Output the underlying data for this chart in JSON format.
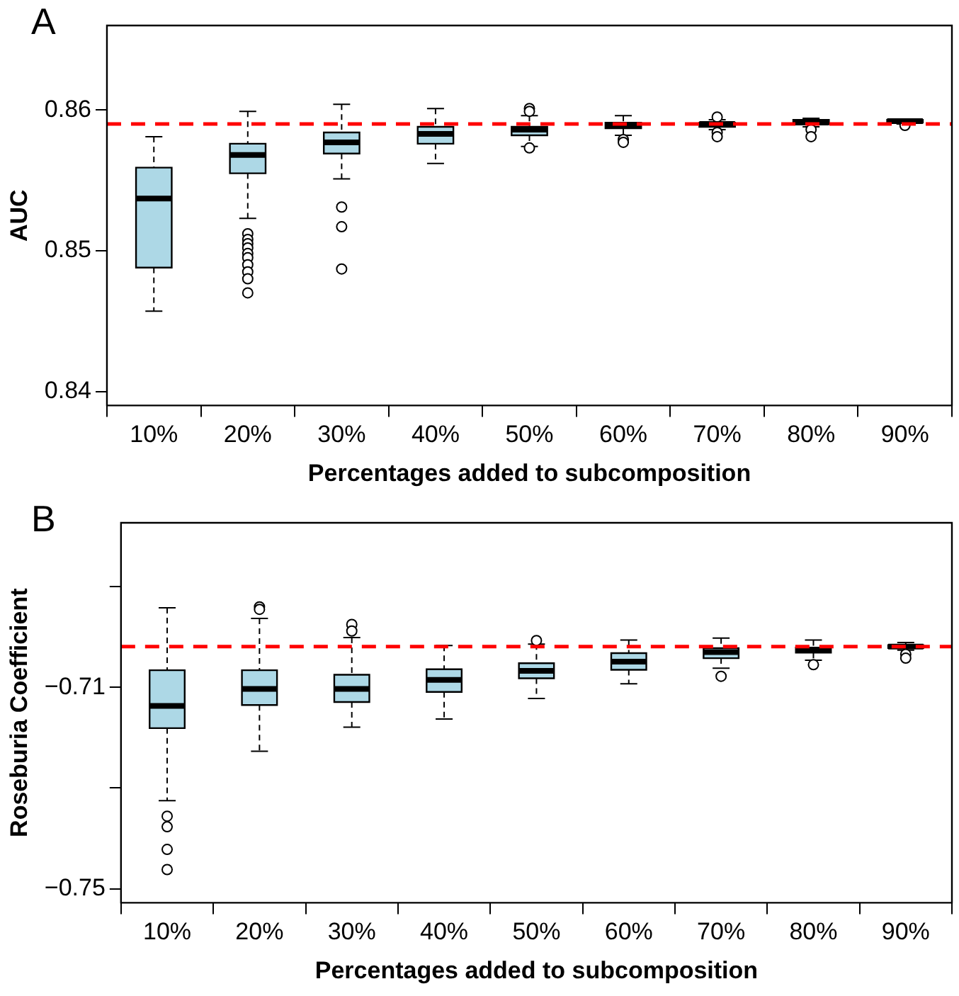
{
  "chart_data": [
    {
      "type": "box",
      "annotations": [
        "A"
      ],
      "xlabel": "Percentages added to subcomposition",
      "ylabel": "AUC",
      "categories": [
        "10%",
        "20%",
        "30%",
        "40%",
        "50%",
        "60%",
        "70%",
        "80%",
        "90%"
      ],
      "color": "#add8e6",
      "grid": false,
      "ylim": [
        0.839,
        0.866
      ],
      "yticks": [
        0.84,
        0.85,
        0.86
      ],
      "ref_lines": [
        {
          "axis": "y",
          "value": 0.859,
          "color": "#ff0000",
          "line_style": "dashed"
        }
      ],
      "boxes": [
        {
          "low": 0.8457,
          "q1": 0.8488,
          "median": 0.8537,
          "q3": 0.8559,
          "high": 0.8581
        },
        {
          "low": 0.8523,
          "q1": 0.8555,
          "median": 0.8568,
          "q3": 0.8576,
          "high": 0.8599,
          "outliers": [
            0.8512,
            0.8508,
            0.8505,
            0.8502,
            0.8498,
            0.8495,
            0.849,
            0.8485,
            0.848,
            0.847
          ]
        },
        {
          "low": 0.8551,
          "q1": 0.8569,
          "median": 0.8577,
          "q3": 0.8584,
          "high": 0.8604,
          "outliers": [
            0.8531,
            0.8517,
            0.8487
          ]
        },
        {
          "low": 0.8562,
          "q1": 0.8576,
          "median": 0.8583,
          "q3": 0.8588,
          "high": 0.8601
        },
        {
          "low": 0.8574,
          "q1": 0.8582,
          "median": 0.8586,
          "q3": 0.8588,
          "high": 0.8596,
          "outliers": [
            0.8601,
            0.8599,
            0.8573
          ]
        },
        {
          "low": 0.8582,
          "q1": 0.8587,
          "median": 0.8589,
          "q3": 0.8591,
          "high": 0.8596,
          "outliers": [
            0.8579,
            0.8577
          ]
        },
        {
          "low": 0.8586,
          "q1": 0.8588,
          "median": 0.859,
          "q3": 0.8591,
          "high": 0.8593,
          "outliers": [
            0.8595,
            0.8584,
            0.8581
          ]
        },
        {
          "low": 0.8588,
          "q1": 0.859,
          "median": 0.8591,
          "q3": 0.8593,
          "high": 0.8594,
          "outliers": [
            0.8586,
            0.8581
          ]
        },
        {
          "low": 0.859,
          "q1": 0.8591,
          "median": 0.8592,
          "q3": 0.8593,
          "high": 0.8593,
          "outliers": [
            0.8589
          ]
        }
      ]
    },
    {
      "type": "box",
      "annotations": [
        "B"
      ],
      "xlabel": "Percentages added to subcomposition",
      "ylabel": "Roseburia Coefficient",
      "categories": [
        "10%",
        "20%",
        "30%",
        "40%",
        "50%",
        "60%",
        "70%",
        "80%",
        "90%"
      ],
      "color": "#add8e6",
      "grid": false,
      "ylim": [
        -0.7528,
        -0.6773
      ],
      "yticks": [
        {
          "value": -0.69,
          "label": null
        },
        {
          "value": -0.71,
          "label": "−0.71"
        },
        {
          "value": -0.73,
          "label": null
        },
        {
          "value": -0.75,
          "label": "−0.75"
        }
      ],
      "ref_lines": [
        {
          "axis": "y",
          "value": -0.7019,
          "color": "#ff0000",
          "line_style": "dashed"
        }
      ],
      "boxes": [
        {
          "low": -0.7325,
          "q1": -0.7181,
          "median": -0.7137,
          "q3": -0.7066,
          "high": -0.6942,
          "outliers": [
            -0.7356,
            -0.7377,
            -0.7422,
            -0.7462
          ]
        },
        {
          "low": -0.7227,
          "q1": -0.7135,
          "median": -0.7103,
          "q3": -0.7066,
          "high": -0.6963,
          "outliers": [
            -0.694,
            -0.6945
          ]
        },
        {
          "low": -0.7179,
          "q1": -0.7129,
          "median": -0.7103,
          "q3": -0.7075,
          "high": -0.7001,
          "outliers": [
            -0.6975,
            -0.6988
          ]
        },
        {
          "low": -0.7163,
          "q1": -0.7109,
          "median": -0.7085,
          "q3": -0.7064,
          "high": -0.7017
        },
        {
          "low": -0.7122,
          "q1": -0.7082,
          "median": -0.7067,
          "q3": -0.7052,
          "high": -0.7014,
          "outliers": [
            -0.7007
          ]
        },
        {
          "low": -0.7093,
          "q1": -0.7065,
          "median": -0.7049,
          "q3": -0.7032,
          "high": -0.7006
        },
        {
          "low": -0.7062,
          "q1": -0.7042,
          "median": -0.703,
          "q3": -0.7022,
          "high": -0.7002,
          "outliers": [
            -0.7078
          ]
        },
        {
          "low": -0.7046,
          "q1": -0.7031,
          "median": -0.7025,
          "q3": -0.7021,
          "high": -0.7006,
          "outliers": [
            -0.7055
          ]
        },
        {
          "low": -0.7026,
          "q1": -0.7022,
          "median": -0.7019,
          "q3": -0.7016,
          "high": -0.7011,
          "outliers": [
            -0.7034,
            -0.7042
          ]
        }
      ]
    }
  ]
}
